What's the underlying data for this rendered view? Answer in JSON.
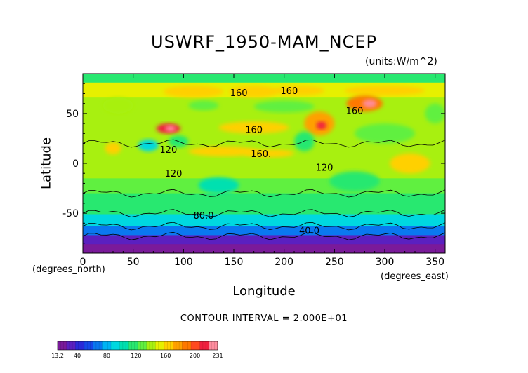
{
  "chart_data": {
    "type": "heatmap",
    "title": "USWRF_1950-MAM_NCEP",
    "units_label": "(units:W/m^2)",
    "xlabel": "Longitude",
    "ylabel": "Latitude",
    "x_units_label": "(degrees_north)",
    "x_units_label_right": "(degrees_east)",
    "contour_interval_label": "CONTOUR INTERVAL = 2.000E+01",
    "xlim": [
      0,
      360
    ],
    "ylim": [
      -90,
      90
    ],
    "x_ticks": [
      0,
      50,
      100,
      150,
      200,
      250,
      300,
      350
    ],
    "y_ticks": [
      -50,
      0,
      50
    ],
    "contour_labels": [
      {
        "text": "160",
        "lon": 155,
        "lat": 71
      },
      {
        "text": "160",
        "lon": 205,
        "lat": 73
      },
      {
        "text": "160",
        "lon": 270,
        "lat": 53
      },
      {
        "text": "160",
        "lon": 170,
        "lat": 34
      },
      {
        "text": "160.",
        "lon": 177,
        "lat": 10
      },
      {
        "text": "120",
        "lon": 85,
        "lat": 14
      },
      {
        "text": "120",
        "lon": 90,
        "lat": -10
      },
      {
        "text": "120",
        "lon": 240,
        "lat": -4
      },
      {
        "text": "80.0",
        "lon": 120,
        "lat": -52
      },
      {
        "text": "40.0",
        "lon": 225,
        "lat": -67
      }
    ],
    "colorbar": {
      "min": 13.2,
      "max": 231,
      "tick_labels": [
        "13.2",
        "40",
        "80",
        "120",
        "160",
        "200",
        "231"
      ],
      "tick_values": [
        13.2,
        40,
        80,
        120,
        160,
        200,
        231
      ],
      "colors": [
        "#7a1a9a",
        "#5a20c0",
        "#2a2ad8",
        "#1648e8",
        "#0a78f0",
        "#00b4f4",
        "#00d8e0",
        "#00e0b0",
        "#28e870",
        "#60f040",
        "#a8f010",
        "#e6f000",
        "#ffd000",
        "#ffa000",
        "#ff7800",
        "#ff4a20",
        "#f02040",
        "#ff8c9e"
      ]
    }
  }
}
